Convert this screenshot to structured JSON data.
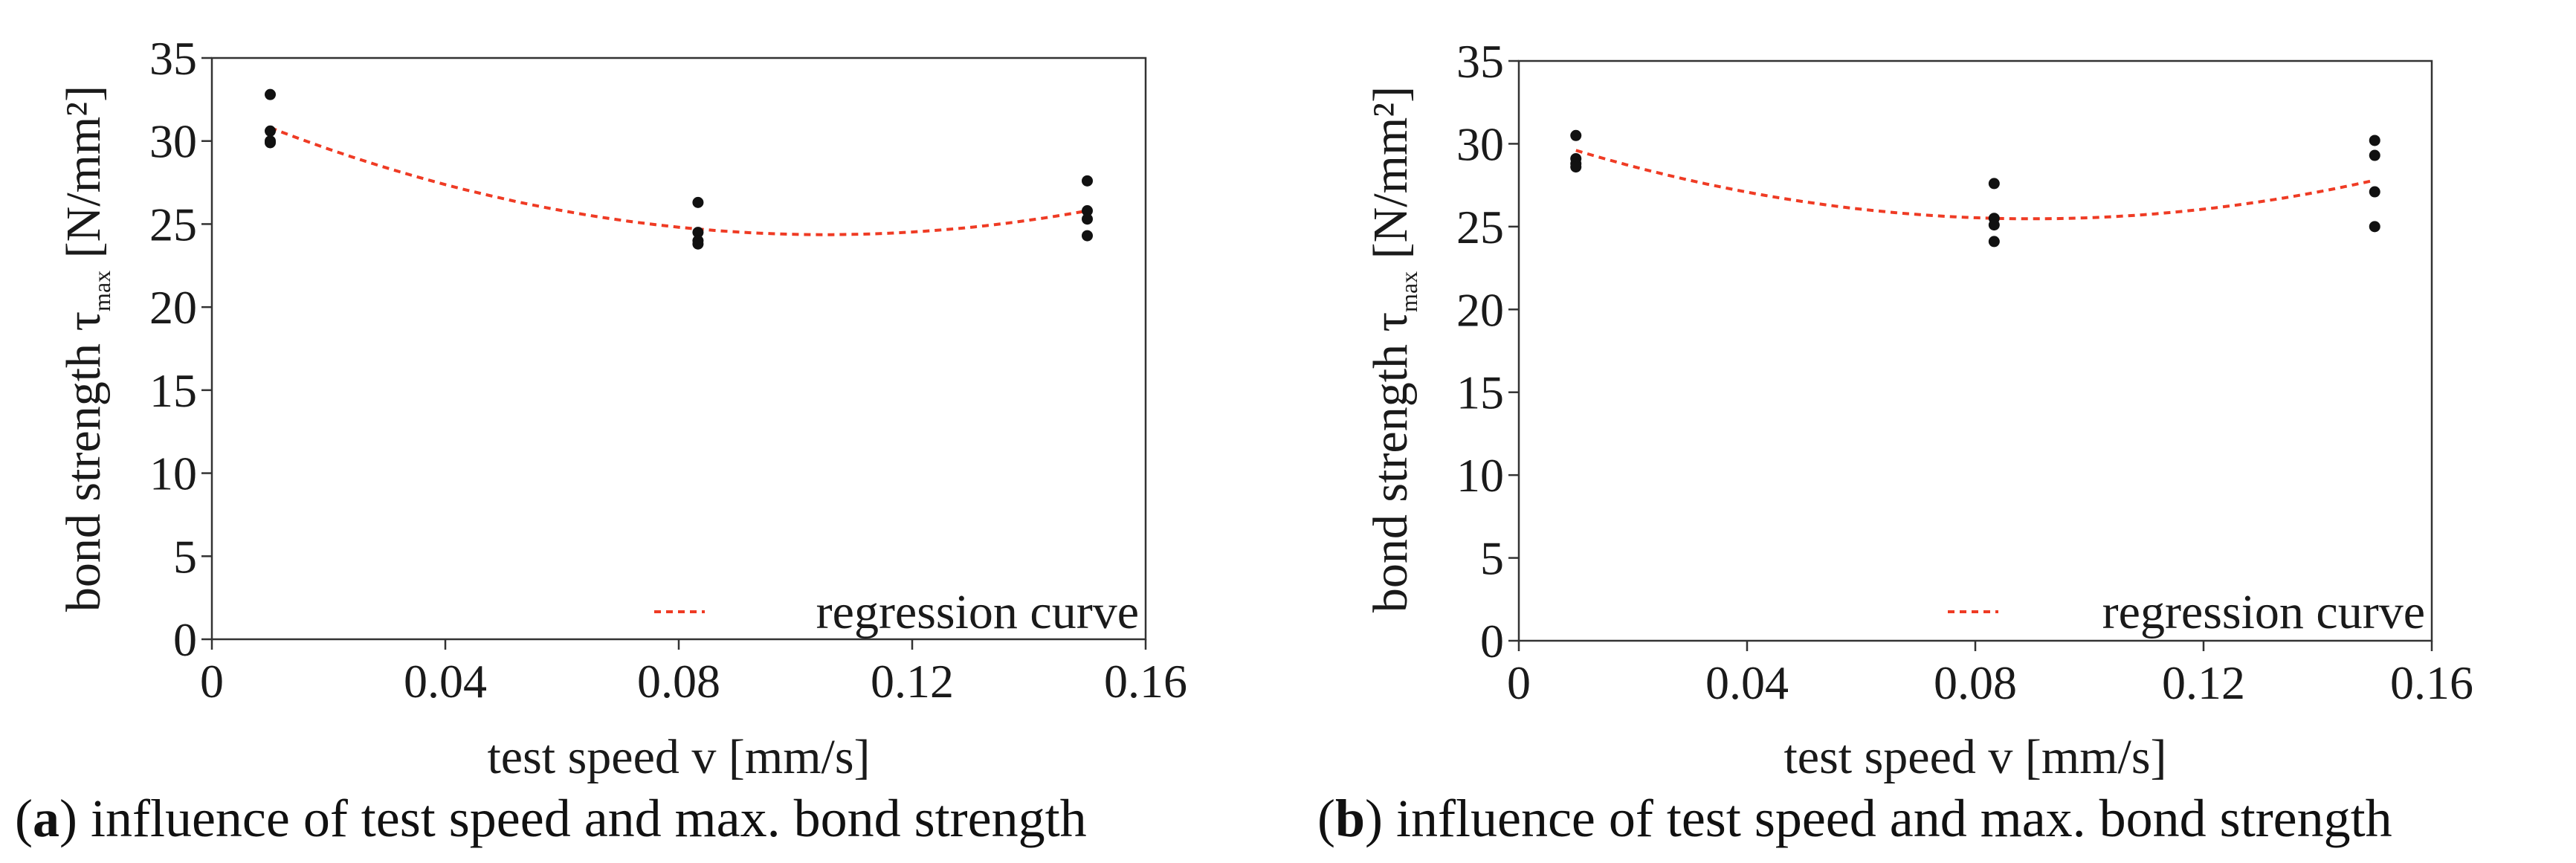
{
  "chart_data": [
    {
      "type": "scatter",
      "panel": "a",
      "caption_letter": "a",
      "caption_text": " influence of test speed and max. bond strength",
      "xlabel": "test speed v [mm/s]",
      "ylabel_main": "bond strength τ",
      "ylabel_sub": "max",
      "ylabel_unit": " [N/mm²]",
      "xlim": [
        0,
        0.16
      ],
      "ylim": [
        0,
        35
      ],
      "xticks": [
        0,
        0.04,
        0.08,
        0.12,
        0.16
      ],
      "xtick_labels": [
        "0",
        "0.04",
        "0.08",
        "0.12",
        "0.16"
      ],
      "yticks": [
        0,
        5,
        10,
        15,
        20,
        25,
        30,
        35
      ],
      "ytick_labels": [
        "0",
        "5",
        "10",
        "15",
        "20",
        "25",
        "30",
        "35"
      ],
      "grid": false,
      "legend_position": "bottom-right",
      "legend_label": "regression curve",
      "points": [
        {
          "x": 0.01,
          "y": 32.8
        },
        {
          "x": 0.01,
          "y": 30.6
        },
        {
          "x": 0.01,
          "y": 30.0
        },
        {
          "x": 0.01,
          "y": 29.9
        },
        {
          "x": 0.0833,
          "y": 26.3
        },
        {
          "x": 0.0833,
          "y": 24.5
        },
        {
          "x": 0.0833,
          "y": 24.0
        },
        {
          "x": 0.0833,
          "y": 23.8
        },
        {
          "x": 0.15,
          "y": 27.6
        },
        {
          "x": 0.15,
          "y": 25.8
        },
        {
          "x": 0.15,
          "y": 25.3
        },
        {
          "x": 0.15,
          "y": 24.3
        }
      ],
      "regression": {
        "x": [
          0.01,
          0.0833,
          0.15
        ],
        "y": [
          30.8,
          24.7,
          25.8
        ]
      },
      "colors": {
        "points": "#111111",
        "regression": "#ef3b24",
        "axis": "#333333"
      }
    },
    {
      "type": "scatter",
      "panel": "b",
      "caption_letter": "b",
      "caption_text": " influence of test speed and max. bond strength",
      "xlabel": "test speed v [mm/s]",
      "ylabel_main": "bond strength τ",
      "ylabel_sub": "max",
      "ylabel_unit": " [N/mm²]",
      "xlim": [
        0,
        0.16
      ],
      "ylim": [
        0,
        35
      ],
      "xticks": [
        0,
        0.04,
        0.08,
        0.12,
        0.16
      ],
      "xtick_labels": [
        "0",
        "0.04",
        "0.08",
        "0.12",
        "0.16"
      ],
      "yticks": [
        0,
        5,
        10,
        15,
        20,
        25,
        30,
        35
      ],
      "ytick_labels": [
        "0",
        "5",
        "10",
        "15",
        "20",
        "25",
        "30",
        "35"
      ],
      "grid": false,
      "legend_position": "bottom-right",
      "legend_label": "regression curve",
      "points": [
        {
          "x": 0.01,
          "y": 30.5
        },
        {
          "x": 0.01,
          "y": 29.1
        },
        {
          "x": 0.01,
          "y": 28.8
        },
        {
          "x": 0.01,
          "y": 28.6
        },
        {
          "x": 0.0833,
          "y": 27.6
        },
        {
          "x": 0.0833,
          "y": 25.5
        },
        {
          "x": 0.0833,
          "y": 25.1
        },
        {
          "x": 0.0833,
          "y": 24.1
        },
        {
          "x": 0.15,
          "y": 30.2
        },
        {
          "x": 0.15,
          "y": 29.3
        },
        {
          "x": 0.15,
          "y": 27.1
        },
        {
          "x": 0.15,
          "y": 25.0
        }
      ],
      "regression": {
        "x": [
          0.01,
          0.0833,
          0.15
        ],
        "y": [
          29.6,
          25.5,
          27.8
        ]
      },
      "colors": {
        "points": "#111111",
        "regression": "#ef3b24",
        "axis": "#333333"
      }
    }
  ]
}
